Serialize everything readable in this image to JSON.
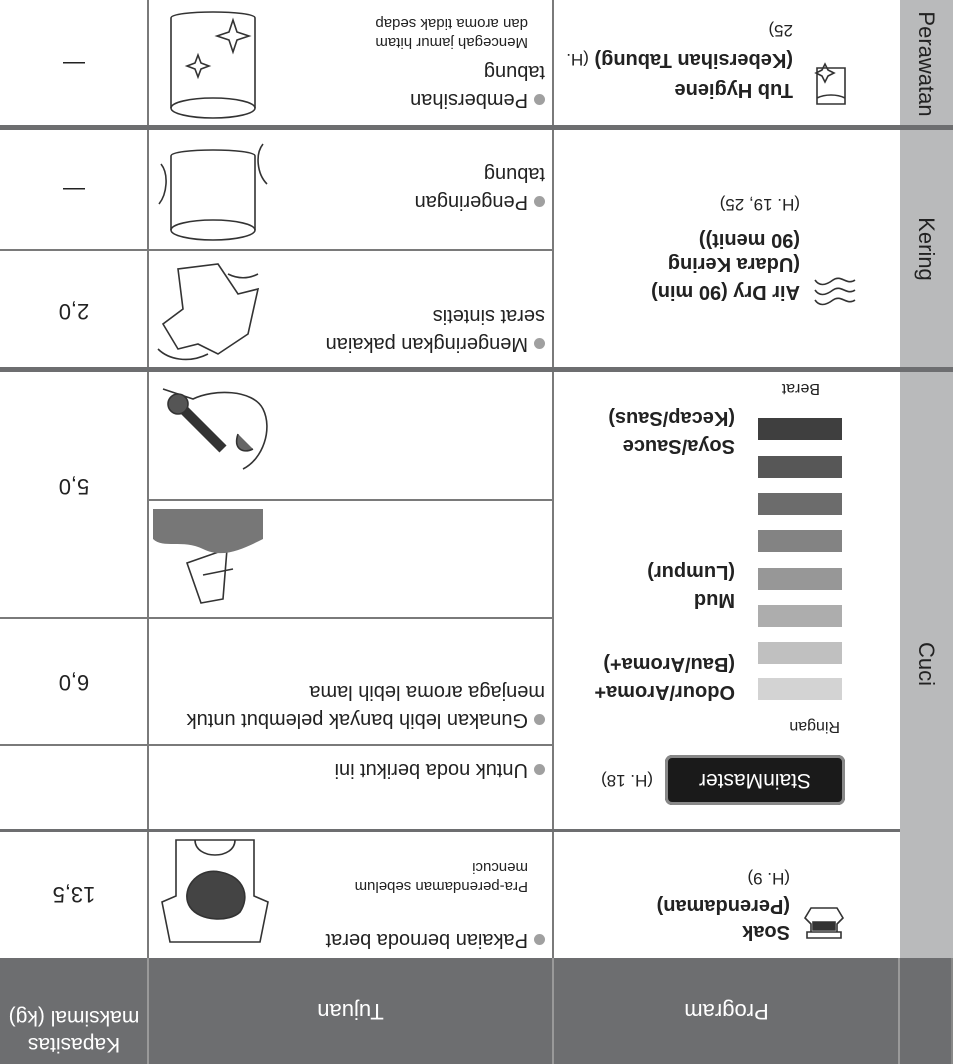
{
  "header": {
    "program": "Program",
    "purpose": "Tujuan",
    "capacity": "Kapasitas maksimal (kg)"
  },
  "sections": [
    "Cuci",
    "Kering",
    "Perawatan"
  ],
  "programs": [
    {
      "name": "Soak",
      "subname": "(Perendaman)",
      "page": "(H. 9)"
    },
    {
      "name": "StainMaster",
      "page": "(H. 18)"
    },
    {
      "name": "Air Dry (90 min)",
      "subname": "(Udara Kering (90 menit))",
      "page": "(H. 19, 25)"
    },
    {
      "name": "Tub Hygiene",
      "subname": "(Kebersihan Tabung)",
      "page": "(H. 25)"
    }
  ],
  "stains": {
    "light": "Ringan",
    "heavy": "Berat",
    "items": [
      {
        "name": "Odour/Aroma+",
        "subname": "(Bau/Aroma+)"
      },
      {
        "name": "Mud",
        "subname": "(Lumpur)"
      },
      {
        "name": "Soya/Sauce",
        "subname": "(Kecap/Saus)"
      }
    ]
  },
  "purposes": [
    {
      "text": "Pakaian bernoda berat",
      "note": "Pra-perendaman sebelum mencuci"
    },
    {
      "text": "Untuk noda berikut ini"
    },
    {
      "text": "Gunakan lebih banyak pelembut untuk menjaga aroma lebih lama"
    },
    {
      "text": "Mengeringkan pakaian serat sintetis"
    },
    {
      "text": "Pengeringan tabung"
    },
    {
      "text": "Pembersihan tabung",
      "note": "Mencegah jamur hitam dan aroma tidak sedap"
    }
  ],
  "capacities": [
    "13,5",
    "6,0",
    "5,0",
    "2,0",
    "—",
    "—"
  ]
}
